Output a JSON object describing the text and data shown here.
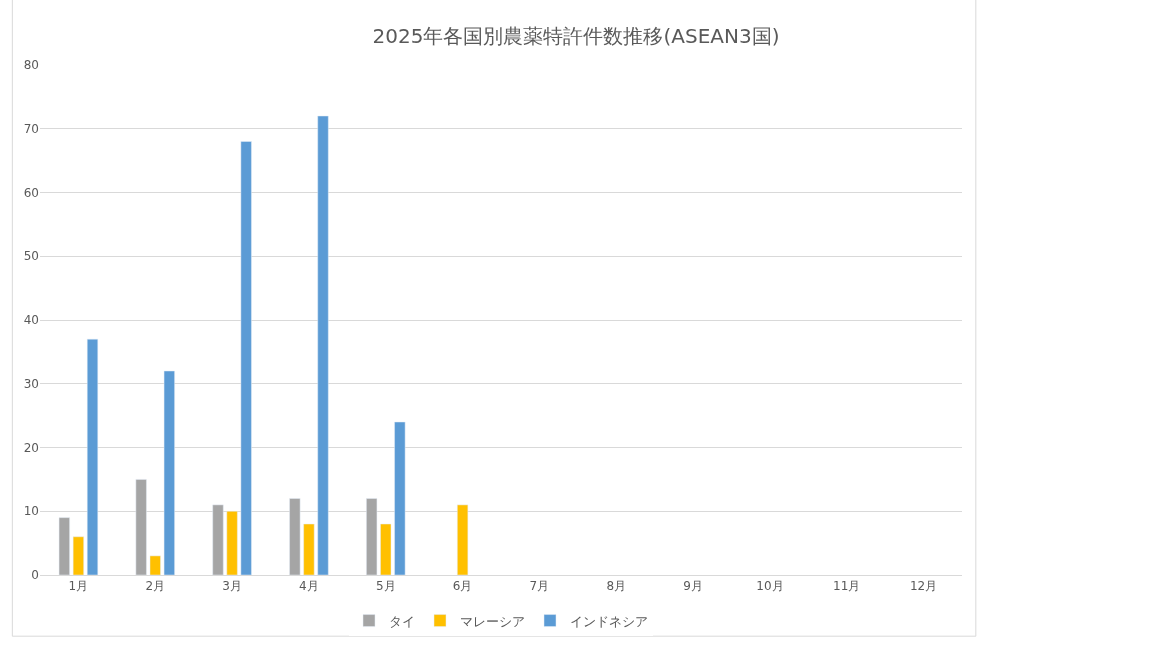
{
  "chart_data": {
    "type": "bar",
    "title": "2025年各国別農薬特許件数推移(ASEAN3国)",
    "categories": [
      "1月",
      "2月",
      "3月",
      "4月",
      "5月",
      "6月",
      "7月",
      "8月",
      "9月",
      "10月",
      "11月",
      "12月"
    ],
    "series": [
      {
        "name": "タイ",
        "color": "#a5a5a5",
        "values": [
          9,
          15,
          11,
          12,
          12,
          null,
          null,
          null,
          null,
          null,
          null,
          null
        ]
      },
      {
        "name": "マレーシア",
        "color": "#ffc000",
        "values": [
          6,
          3,
          10,
          8,
          8,
          11,
          null,
          null,
          null,
          null,
          null,
          null
        ]
      },
      {
        "name": "インドネシア",
        "color": "#5b9bd5",
        "values": [
          37,
          32,
          68,
          72,
          24,
          null,
          null,
          null,
          null,
          null,
          null,
          null
        ]
      }
    ],
    "ylim": [
      0,
      80
    ],
    "yticks": [
      0,
      10,
      20,
      30,
      40,
      50,
      60,
      70,
      80
    ],
    "grid": "y",
    "legend": "bottom"
  }
}
